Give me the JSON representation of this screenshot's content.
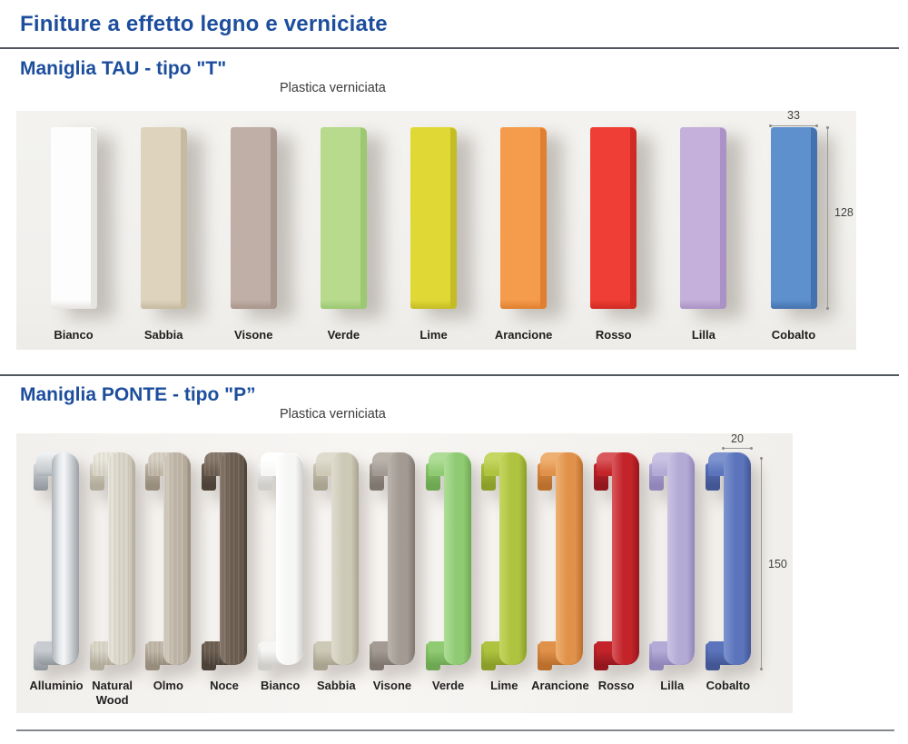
{
  "page": {
    "title": "Finiture a effetto legno e verniciate"
  },
  "colors": {
    "accent_blue": "#1d4e9e",
    "panel_background": "#f2f1ee"
  },
  "sections": {
    "tau": {
      "heading": "Maniglia TAU - tipo \"T\"",
      "subtitle": "Plastica verniciata",
      "dim_width": "33",
      "dim_height": "128",
      "swatches": [
        {
          "label": "Bianco",
          "main": "#fdfdfd",
          "side": "#e6e4e1"
        },
        {
          "label": "Sabbia",
          "main": "#ded4bd",
          "side": "#c6baa0"
        },
        {
          "label": "Visone",
          "main": "#c0afa6",
          "side": "#a8968c"
        },
        {
          "label": "Verde",
          "main": "#b7da8c",
          "side": "#9cc872"
        },
        {
          "label": "Lime",
          "main": "#e0d935",
          "side": "#c4bc25"
        },
        {
          "label": "Arancione",
          "main": "#f49c4c",
          "side": "#e07f2f"
        },
        {
          "label": "Rosso",
          "main": "#ee3e35",
          "side": "#d02a24"
        },
        {
          "label": "Lilla",
          "main": "#c4b0da",
          "side": "#ab92c6"
        },
        {
          "label": "Cobalto",
          "main": "#5e90ce",
          "side": "#4472ae"
        }
      ]
    },
    "ponte": {
      "heading": "Maniglia PONTE - tipo \"P”",
      "subtitle": "Plastica verniciata",
      "dim_width": "20",
      "dim_height": "150",
      "swatches": [
        {
          "label": "Alluminio",
          "main": "#ccd0d3",
          "dark": "#9aa0a6",
          "light": "#f0f2f4",
          "texture": "metal"
        },
        {
          "label": "Natural Wood",
          "main": "#d9d5c7",
          "dark": "#b2ac9b",
          "light": "#e9e6dc",
          "texture": "wood"
        },
        {
          "label": "Olmo",
          "main": "#c0b6a7",
          "dark": "#988d7d",
          "light": "#d6cfc3",
          "texture": "wood"
        },
        {
          "label": "Noce",
          "main": "#6c5e51",
          "dark": "#4c4238",
          "light": "#87786b",
          "texture": "wood"
        },
        {
          "label": "Bianco",
          "main": "#f6f6f5",
          "dark": "#cfcecb",
          "light": "#ffffff"
        },
        {
          "label": "Sabbia",
          "main": "#cdc9b7",
          "dark": "#a7a38f",
          "light": "#dfdccf"
        },
        {
          "label": "Visone",
          "main": "#a39b93",
          "dark": "#7f776f",
          "light": "#bab3ac"
        },
        {
          "label": "Verde",
          "main": "#90cb74",
          "dark": "#6da751",
          "light": "#aedd97"
        },
        {
          "label": "Lime",
          "main": "#aec340",
          "dark": "#8b9e29",
          "light": "#c6d662"
        },
        {
          "label": "Arancione",
          "main": "#e0914a",
          "dark": "#ba6f2d",
          "light": "#eeb071"
        },
        {
          "label": "Rosso",
          "main": "#c2242a",
          "dark": "#92171d",
          "light": "#d8585c"
        },
        {
          "label": "Lilla",
          "main": "#b3aad6",
          "dark": "#8f85b9",
          "light": "#cac2e2"
        },
        {
          "label": "Cobalto",
          "main": "#5b74bc",
          "dark": "#435694",
          "light": "#7e93ce"
        }
      ]
    }
  }
}
